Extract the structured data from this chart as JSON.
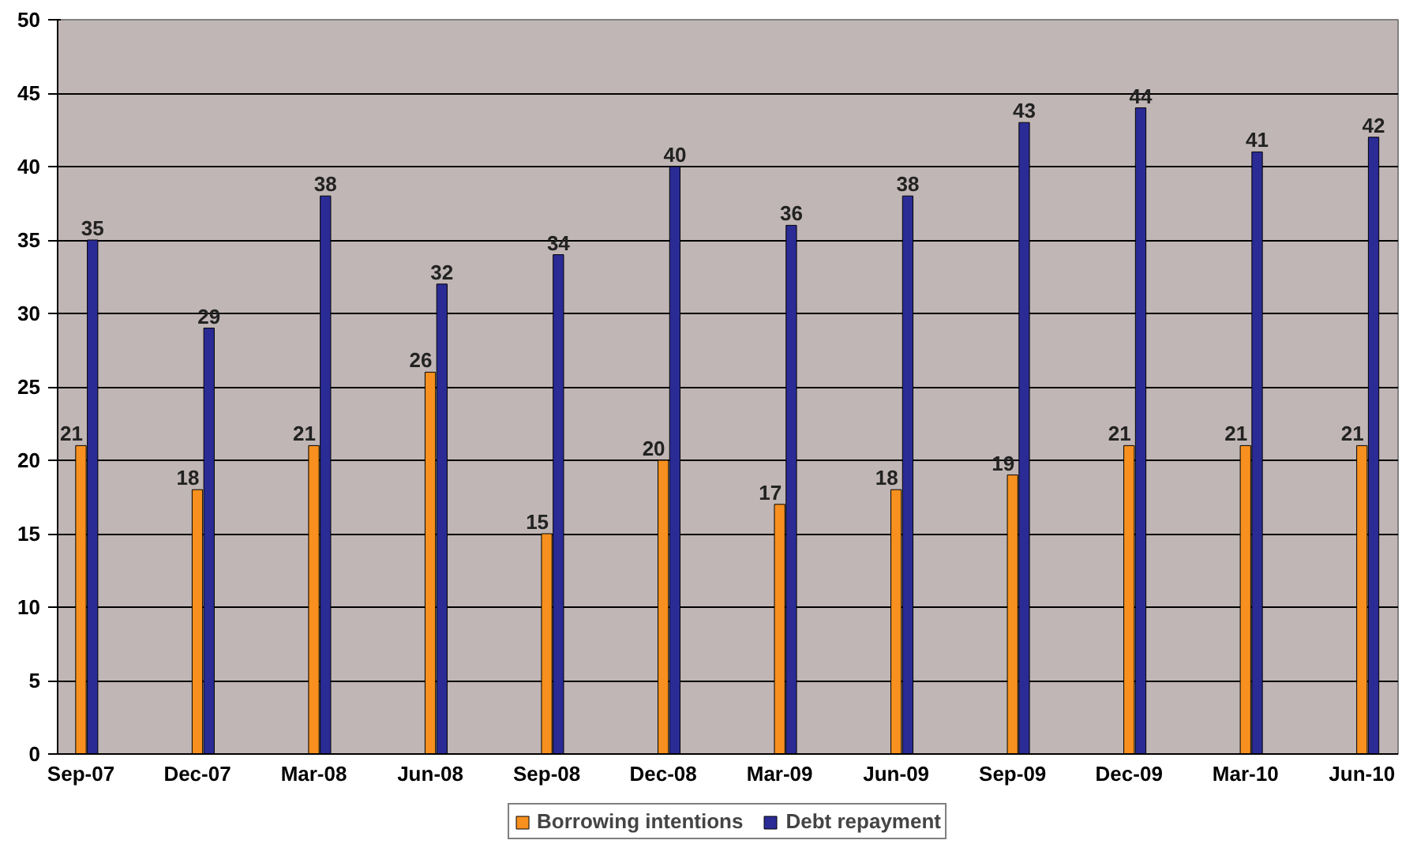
{
  "chart_data": {
    "type": "bar",
    "categories": [
      "Sep-07",
      "Dec-07",
      "Mar-08",
      "Jun-08",
      "Sep-08",
      "Dec-08",
      "Mar-09",
      "Jun-09",
      "Sep-09",
      "Dec-09",
      "Mar-10",
      "Jun-10"
    ],
    "series": [
      {
        "name": "Borrowing intentions",
        "color": "#f7901e",
        "values": [
          21,
          18,
          21,
          26,
          15,
          20,
          17,
          18,
          19,
          21,
          21,
          21
        ]
      },
      {
        "name": "Debt repayment",
        "color": "#2b2b96",
        "values": [
          35,
          29,
          38,
          32,
          34,
          40,
          36,
          38,
          43,
          44,
          41,
          42
        ]
      }
    ],
    "ylim": [
      0,
      50
    ],
    "yticks": [
      0,
      5,
      10,
      15,
      20,
      25,
      30,
      35,
      40,
      45,
      50
    ],
    "grid": "y",
    "legend": "bottom",
    "data_labels": true
  }
}
